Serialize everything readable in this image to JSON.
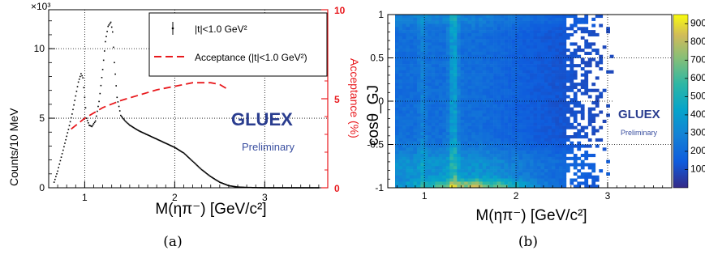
{
  "chart_data": [
    {
      "type": "scatter",
      "xlabel": "M(ηπ⁻) [GeV/c²]",
      "ylabel": "Counts/10 MeV",
      "ylabel_right": "Acceptance (%)",
      "y_multiplier": "×10³",
      "xlim": [
        0.6,
        3.7
      ],
      "ylim": [
        0,
        12.8
      ],
      "ylim_right": [
        0,
        10
      ],
      "x_ticks": [
        "1",
        "2",
        "3"
      ],
      "y_ticks": [
        "0",
        "5",
        "10"
      ],
      "y_right_ticks": [
        "0",
        "5",
        "10"
      ],
      "grid": true,
      "legend_position": "top-right",
      "caption": "(a)",
      "logo_text": "GLUEX",
      "preliminary": "Preliminary",
      "series": [
        {
          "name": "|t|<1.0 GeV²",
          "style": "points",
          "color": "#000000",
          "x": [
            0.66,
            0.7,
            0.74,
            0.78,
            0.82,
            0.86,
            0.9,
            0.93,
            0.96,
            0.98,
            1.0,
            1.02,
            1.05,
            1.08,
            1.12,
            1.16,
            1.2,
            1.23,
            1.26,
            1.29,
            1.31,
            1.33,
            1.36,
            1.4,
            1.45,
            1.5,
            1.6,
            1.7,
            1.8,
            1.9,
            2.0,
            2.1,
            2.2,
            2.3,
            2.4,
            2.5,
            2.6,
            2.7,
            2.8,
            2.9,
            3.0,
            3.2,
            3.4,
            3.6
          ],
          "y": [
            0.4,
            1.2,
            2.2,
            3.2,
            4.2,
            5.3,
            6.6,
            7.6,
            8.2,
            7.9,
            6.5,
            5.0,
            4.5,
            4.4,
            4.8,
            6.2,
            8.5,
            10.5,
            11.6,
            11.9,
            11.2,
            9.0,
            6.5,
            5.2,
            4.8,
            4.5,
            4.1,
            3.8,
            3.5,
            3.2,
            2.9,
            2.5,
            1.9,
            1.3,
            0.8,
            0.4,
            0.15,
            0.05,
            0.02,
            0.01,
            0.0,
            0.0,
            0.0,
            0.0
          ]
        },
        {
          "name": "Acceptance (|t|<1.0 GeV²)",
          "style": "dashed-line",
          "color": "#e8191d",
          "axis": "right",
          "x": [
            0.85,
            1.0,
            1.2,
            1.4,
            1.6,
            1.8,
            2.0,
            2.2,
            2.3,
            2.4,
            2.5,
            2.6
          ],
          "y": [
            3.3,
            3.9,
            4.5,
            4.9,
            5.2,
            5.5,
            5.7,
            5.9,
            5.9,
            5.9,
            5.8,
            5.5
          ]
        }
      ]
    },
    {
      "type": "heatmap",
      "xlabel": "M(ηπ⁻) [GeV/c²]",
      "ylabel": "cosθ_GJ",
      "xlim": [
        0.6,
        3.7
      ],
      "ylim": [
        -1,
        1
      ],
      "x_ticks": [
        "1",
        "2",
        "3"
      ],
      "y_ticks": [
        "-1",
        "-0.5",
        "0",
        "0.5",
        "1"
      ],
      "zlim": [
        0,
        950
      ],
      "z_ticks": [
        "100",
        "200",
        "300",
        "400",
        "500",
        "600",
        "700",
        "800",
        "900"
      ],
      "colormap": "viridis",
      "grid": true,
      "caption": "(b)",
      "logo_text": "GLUEX",
      "preliminary": "Preliminary"
    }
  ]
}
